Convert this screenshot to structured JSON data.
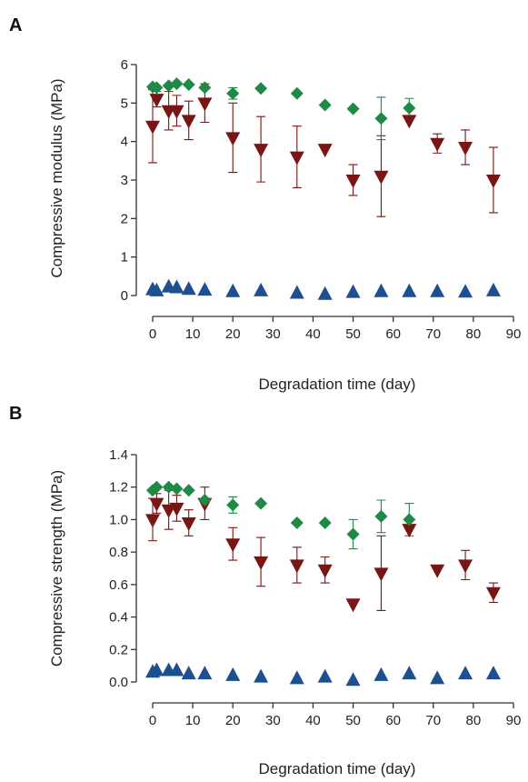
{
  "chart_data": [
    {
      "panel": "A",
      "type": "scatter",
      "xlabel": "Degradation time (day)",
      "ylabel": "Compressive modulus (MPa)",
      "xlim": [
        0,
        90
      ],
      "ylim": [
        0,
        6
      ],
      "xticks": [
        "0",
        "10",
        "20",
        "30",
        "40",
        "50",
        "60",
        "70",
        "80",
        "90"
      ],
      "yticks": [
        "0",
        "1",
        "2",
        "3",
        "4",
        "5",
        "6"
      ],
      "grid": false,
      "legend": "none",
      "series": [
        {
          "marker": "diamond",
          "color": "#1e8a45",
          "points": [
            {
              "x": 0,
              "y": 5.42
            },
            {
              "x": 1,
              "y": 5.4
            },
            {
              "x": 4,
              "y": 5.45
            },
            {
              "x": 6,
              "y": 5.5
            },
            {
              "x": 9,
              "y": 5.48
            },
            {
              "x": 13,
              "y": 5.4
            },
            {
              "x": 20,
              "y": 5.25,
              "err": 0.15
            },
            {
              "x": 27,
              "y": 5.38
            },
            {
              "x": 36,
              "y": 5.25
            },
            {
              "x": 43,
              "y": 4.95
            },
            {
              "x": 50,
              "y": 4.85
            },
            {
              "x": 57,
              "y": 4.6,
              "err": 0.55
            },
            {
              "x": 64,
              "y": 4.87,
              "err": 0.25
            }
          ]
        },
        {
          "marker": "triangle-down",
          "color": "#7a1515",
          "points": [
            {
              "x": 0,
              "y": 4.4,
              "err": 0.95
            },
            {
              "x": 1,
              "y": 5.1,
              "err": 0.2
            },
            {
              "x": 4,
              "y": 4.8,
              "err": 0.5
            },
            {
              "x": 6,
              "y": 4.8,
              "err": 0.4
            },
            {
              "x": 9,
              "y": 4.55,
              "err": 0.5
            },
            {
              "x": 13,
              "y": 5.0,
              "err": 0.5
            },
            {
              "x": 20,
              "y": 4.1,
              "err": 0.9
            },
            {
              "x": 27,
              "y": 3.8,
              "err": 0.85
            },
            {
              "x": 36,
              "y": 3.6,
              "err": 0.8
            },
            {
              "x": 43,
              "y": 3.8
            },
            {
              "x": 50,
              "y": 3.0,
              "err": 0.4
            },
            {
              "x": 57,
              "y": 3.1,
              "err": 1.05
            },
            {
              "x": 64,
              "y": 4.55
            },
            {
              "x": 71,
              "y": 3.95,
              "err": 0.25
            },
            {
              "x": 78,
              "y": 3.85,
              "err": 0.45
            },
            {
              "x": 85,
              "y": 3.0,
              "err": 0.85
            }
          ]
        },
        {
          "marker": "triangle-up",
          "color": "#1d4f91",
          "points": [
            {
              "x": 0,
              "y": 0.15
            },
            {
              "x": 1,
              "y": 0.12
            },
            {
              "x": 4,
              "y": 0.22
            },
            {
              "x": 6,
              "y": 0.2
            },
            {
              "x": 9,
              "y": 0.16
            },
            {
              "x": 13,
              "y": 0.14
            },
            {
              "x": 20,
              "y": 0.1
            },
            {
              "x": 27,
              "y": 0.12
            },
            {
              "x": 36,
              "y": 0.06
            },
            {
              "x": 43,
              "y": 0.03
            },
            {
              "x": 50,
              "y": 0.08
            },
            {
              "x": 57,
              "y": 0.1
            },
            {
              "x": 64,
              "y": 0.1
            },
            {
              "x": 71,
              "y": 0.1
            },
            {
              "x": 78,
              "y": 0.09
            },
            {
              "x": 85,
              "y": 0.12
            }
          ]
        }
      ]
    },
    {
      "panel": "B",
      "type": "scatter",
      "xlabel": "Degradation time (day)",
      "ylabel": "Compressive strength (MPa)",
      "xlim": [
        0,
        90
      ],
      "ylim": [
        0,
        1.4
      ],
      "xticks": [
        "0",
        "10",
        "20",
        "30",
        "40",
        "50",
        "60",
        "70",
        "80",
        "90"
      ],
      "yticks": [
        "0.0",
        "0.2",
        "0.4",
        "0.6",
        "0.8",
        "1.0",
        "1.2",
        "1.4"
      ],
      "grid": false,
      "legend": "none",
      "series": [
        {
          "marker": "diamond",
          "color": "#1e8a45",
          "points": [
            {
              "x": 0,
              "y": 1.18
            },
            {
              "x": 1,
              "y": 1.2
            },
            {
              "x": 4,
              "y": 1.2
            },
            {
              "x": 6,
              "y": 1.19
            },
            {
              "x": 9,
              "y": 1.18
            },
            {
              "x": 13,
              "y": 1.12
            },
            {
              "x": 20,
              "y": 1.09,
              "err": 0.05
            },
            {
              "x": 27,
              "y": 1.1
            },
            {
              "x": 36,
              "y": 0.98
            },
            {
              "x": 43,
              "y": 0.98
            },
            {
              "x": 50,
              "y": 0.91,
              "err": 0.09
            },
            {
              "x": 57,
              "y": 1.02,
              "err": 0.1
            },
            {
              "x": 64,
              "y": 1.0,
              "err": 0.1
            }
          ]
        },
        {
          "marker": "triangle-down",
          "color": "#7a1515",
          "points": [
            {
              "x": 0,
              "y": 1.0,
              "err": 0.13
            },
            {
              "x": 1,
              "y": 1.1,
              "err": 0.06
            },
            {
              "x": 4,
              "y": 1.06,
              "err": 0.12
            },
            {
              "x": 6,
              "y": 1.07,
              "err": 0.08
            },
            {
              "x": 9,
              "y": 0.98,
              "err": 0.08
            },
            {
              "x": 13,
              "y": 1.1,
              "err": 0.1
            },
            {
              "x": 20,
              "y": 0.85,
              "err": 0.1
            },
            {
              "x": 27,
              "y": 0.74,
              "err": 0.15
            },
            {
              "x": 36,
              "y": 0.72,
              "err": 0.11
            },
            {
              "x": 43,
              "y": 0.69,
              "err": 0.08
            },
            {
              "x": 50,
              "y": 0.48
            },
            {
              "x": 57,
              "y": 0.67,
              "err": 0.23
            },
            {
              "x": 64,
              "y": 0.94
            },
            {
              "x": 71,
              "y": 0.69
            },
            {
              "x": 78,
              "y": 0.72,
              "err": 0.09
            },
            {
              "x": 85,
              "y": 0.55,
              "err": 0.06
            }
          ]
        },
        {
          "marker": "triangle-up",
          "color": "#1d4f91",
          "points": [
            {
              "x": 0,
              "y": 0.06
            },
            {
              "x": 1,
              "y": 0.07
            },
            {
              "x": 4,
              "y": 0.07
            },
            {
              "x": 6,
              "y": 0.07
            },
            {
              "x": 9,
              "y": 0.05
            },
            {
              "x": 13,
              "y": 0.05
            },
            {
              "x": 20,
              "y": 0.04
            },
            {
              "x": 27,
              "y": 0.03
            },
            {
              "x": 36,
              "y": 0.02
            },
            {
              "x": 43,
              "y": 0.03
            },
            {
              "x": 50,
              "y": 0.01
            },
            {
              "x": 57,
              "y": 0.04
            },
            {
              "x": 64,
              "y": 0.05
            },
            {
              "x": 71,
              "y": 0.02
            },
            {
              "x": 78,
              "y": 0.05
            },
            {
              "x": 85,
              "y": 0.05
            }
          ]
        }
      ]
    }
  ]
}
